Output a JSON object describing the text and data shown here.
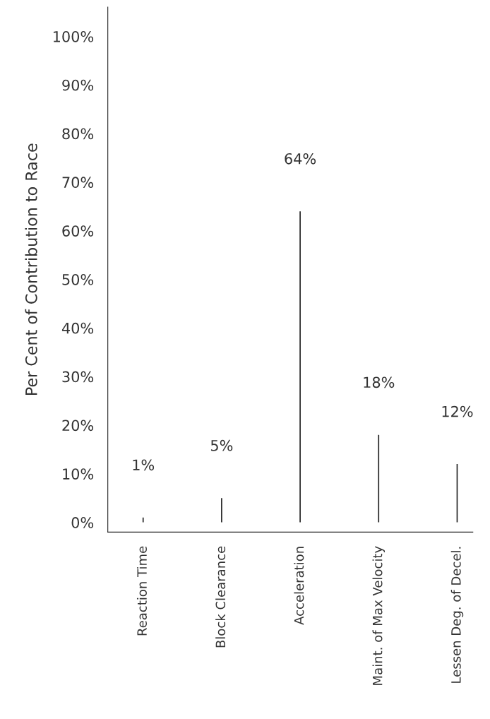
{
  "chart_data": {
    "type": "bar",
    "ylabel": "Per Cent of Contribution to Race",
    "categories": [
      "Reaction Time",
      "Block Clearance",
      "Acceleration",
      "Maint. of Max Velocity",
      "Lessen Deg. of Decel."
    ],
    "values": [
      1,
      5,
      64,
      18,
      12
    ],
    "value_labels": [
      "1%",
      "5%",
      "64%",
      "18%",
      "12%"
    ],
    "color": "#222222",
    "ylim": [
      -2,
      106
    ],
    "yticks": [
      {
        "value": 0,
        "label": "0%"
      },
      {
        "value": 10,
        "label": "10%"
      },
      {
        "value": 20,
        "label": "20%"
      },
      {
        "value": 30,
        "label": "30%"
      },
      {
        "value": 40,
        "label": "40%"
      },
      {
        "value": 50,
        "label": "50%"
      },
      {
        "value": 60,
        "label": "60%"
      },
      {
        "value": 70,
        "label": "70%"
      },
      {
        "value": 80,
        "label": "80%"
      },
      {
        "value": 90,
        "label": "90%"
      },
      {
        "value": 100,
        "label": "100%"
      }
    ],
    "grid": false
  }
}
